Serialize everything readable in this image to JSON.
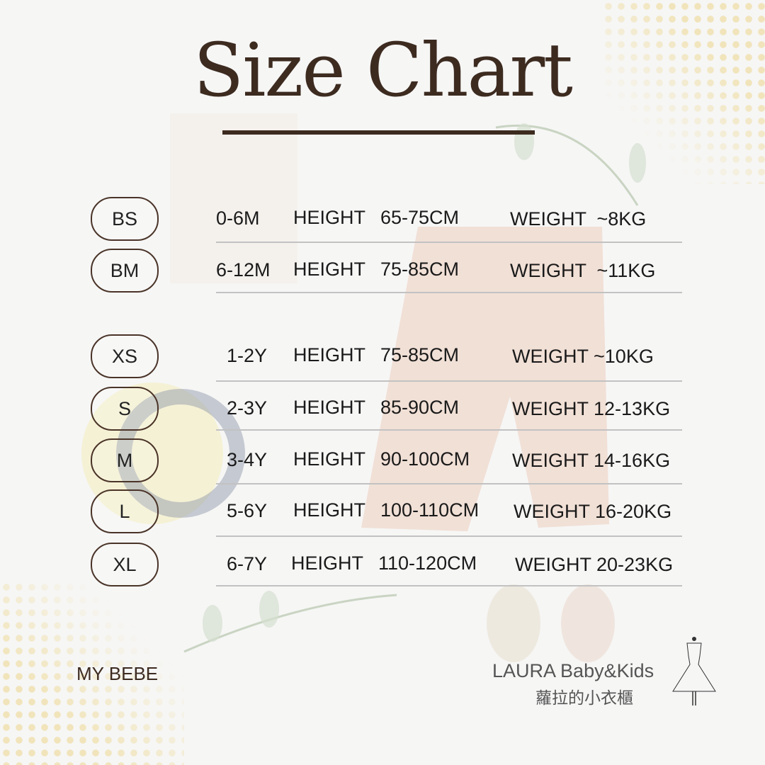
{
  "title": "Size Chart",
  "columns": {
    "height_label": "HEIGHT",
    "weight_label": "WEIGHT"
  },
  "rows": [
    {
      "size": "BS",
      "age": "0-6M",
      "height": "65-75CM",
      "weight": "~8KG"
    },
    {
      "size": "BM",
      "age": "6-12M",
      "height": "75-85CM",
      "weight": "~11KG"
    },
    {
      "size": "XS",
      "age": "1-2Y",
      "height": "75-85CM",
      "weight": "~10KG"
    },
    {
      "size": "S",
      "age": "2-3Y",
      "height": "85-90CM",
      "weight": "12-13KG"
    },
    {
      "size": "M",
      "age": "3-4Y",
      "height": "90-100CM",
      "weight": "14-16KG"
    },
    {
      "size": "L",
      "age": "5-6Y",
      "height": "100-110CM",
      "weight": "16-20KG"
    },
    {
      "size": "XL",
      "age": "6-7Y",
      "height": "110-120CM",
      "weight": "20-23KG"
    }
  ],
  "footer": {
    "left_brand": "MY BEBE",
    "right_brand": "LAURA Baby&Kids",
    "right_brand_cn": "蘿拉的小衣櫃",
    "logo_icon": "dress-icon"
  },
  "colors": {
    "title": "#3d2b20",
    "pill_border": "#4a3428",
    "divider": "#c2c2c2",
    "dots": "#f0dfa8"
  }
}
